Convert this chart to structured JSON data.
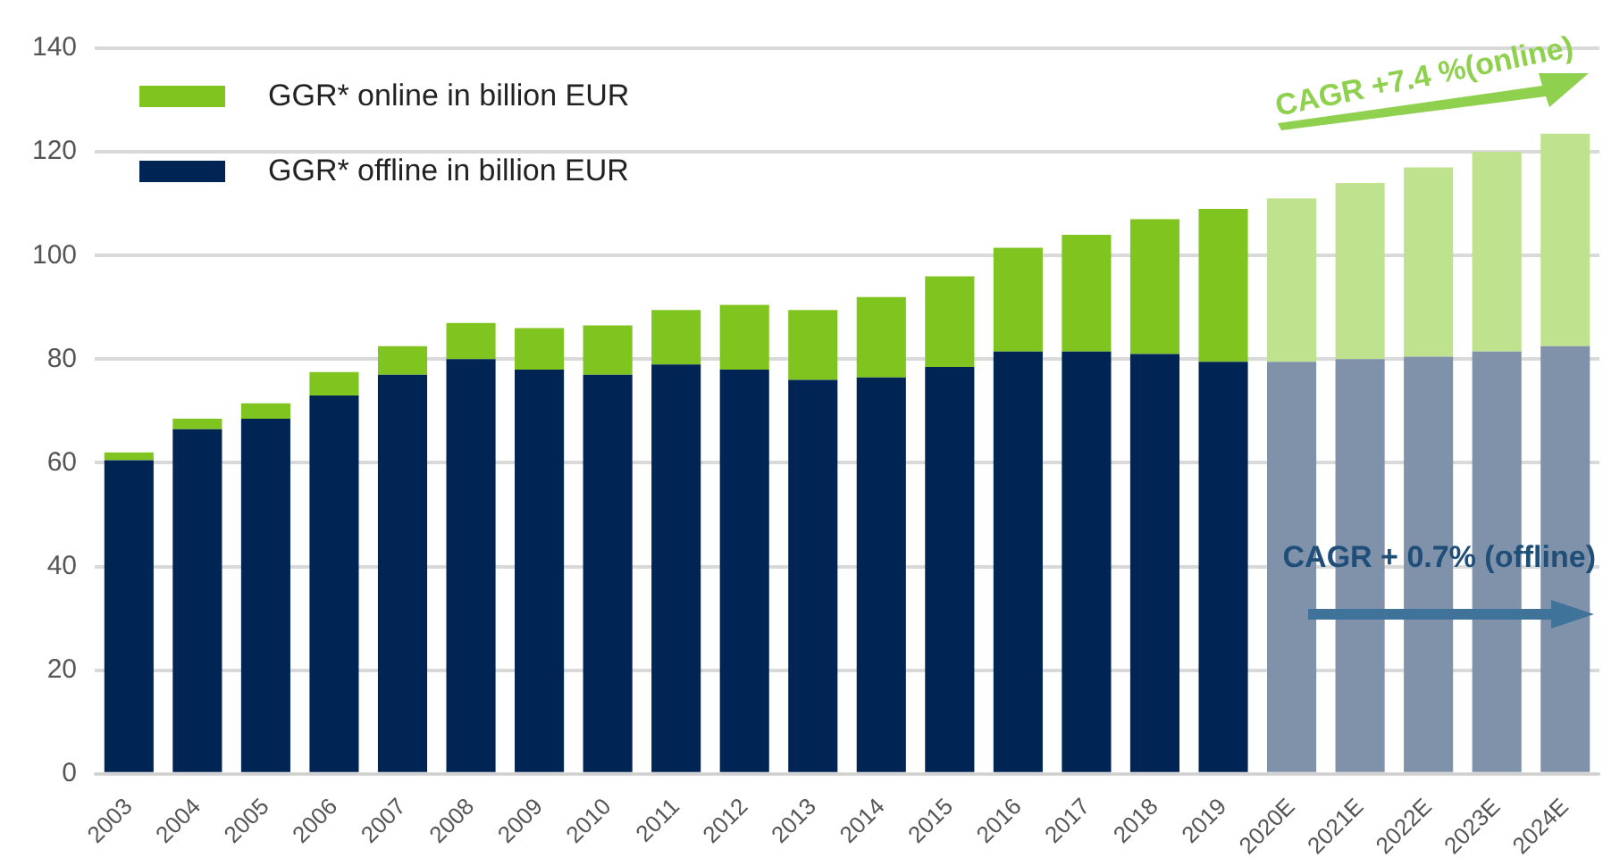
{
  "chart_data": {
    "type": "bar",
    "stacked": true,
    "categories": [
      "2003",
      "2004",
      "2005",
      "2006",
      "2007",
      "2008",
      "2009",
      "2010",
      "2011",
      "2012",
      "2013",
      "2014",
      "2015",
      "2016",
      "2017",
      "2018",
      "2019",
      "2020E",
      "2021E",
      "2022E",
      "2023E",
      "2024E"
    ],
    "series": [
      {
        "name": "GGR* offline in billion EUR",
        "color": "#002554",
        "colors": [
          "#002554",
          "#002554",
          "#002554",
          "#002554",
          "#002554",
          "#002554",
          "#002554",
          "#002554",
          "#002554",
          "#002554",
          "#002554",
          "#002554",
          "#002554",
          "#002554",
          "#002554",
          "#002554",
          "#002554",
          "#7f92aa",
          "#7f92aa",
          "#7f92aa",
          "#7f92aa",
          "#7f92aa"
        ],
        "values": [
          60.5,
          66.5,
          68.5,
          73,
          77,
          80,
          78,
          77,
          79,
          78,
          76,
          76.5,
          78.5,
          81.5,
          81.5,
          81,
          79.5,
          79.5,
          80,
          80.5,
          81.5,
          82.5
        ]
      },
      {
        "name": "GGR* online in billion EUR",
        "color": "#80c41f",
        "colors": [
          "#80c41f",
          "#80c41f",
          "#80c41f",
          "#80c41f",
          "#80c41f",
          "#80c41f",
          "#80c41f",
          "#80c41f",
          "#80c41f",
          "#80c41f",
          "#80c41f",
          "#80c41f",
          "#80c41f",
          "#80c41f",
          "#80c41f",
          "#80c41f",
          "#80c41f",
          "#bfe28f",
          "#bfe28f",
          "#bfe28f",
          "#bfe28f",
          "#bfe28f"
        ],
        "values": [
          1.5,
          2,
          3,
          4.5,
          5.5,
          7,
          8,
          9.5,
          10.5,
          12.5,
          13.5,
          15.5,
          17.5,
          20,
          22.5,
          26,
          29.5,
          31.5,
          34,
          36.5,
          38.5,
          41
        ]
      }
    ],
    "ylim": [
      0,
      140
    ],
    "yticks": [
      0,
      20,
      40,
      60,
      80,
      100,
      120,
      140
    ],
    "grid": "y",
    "legend": "top left",
    "annotations": [
      "CAGR +7.4 %(online)",
      "CAGR + 0.7% (offline)"
    ]
  }
}
